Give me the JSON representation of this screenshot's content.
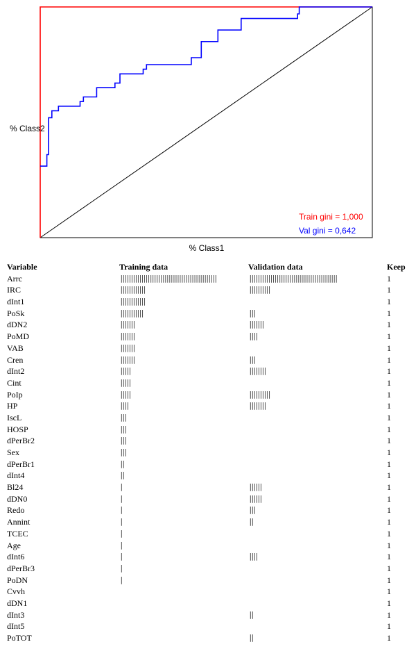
{
  "chart_data": {
    "type": "line",
    "xlabel": "% Class1",
    "ylabel": "% Class2",
    "xlim": [
      0,
      100
    ],
    "ylim": [
      0,
      100
    ],
    "grid": false,
    "legend_position": "bottom-right",
    "series": [
      {
        "name": "Train gini = 1,000",
        "color": "#ff0000",
        "points": [
          [
            0,
            0
          ],
          [
            0,
            100
          ],
          [
            100,
            100
          ]
        ]
      },
      {
        "name": "Val   gini = 0,642",
        "color": "#0000ff",
        "points": [
          [
            0,
            31
          ],
          [
            2,
            31
          ],
          [
            2,
            36
          ],
          [
            2.5,
            36
          ],
          [
            2.5,
            52
          ],
          [
            3.5,
            52
          ],
          [
            3.5,
            55
          ],
          [
            5.5,
            55
          ],
          [
            5.5,
            57
          ],
          [
            12,
            57
          ],
          [
            12,
            59
          ],
          [
            13,
            59
          ],
          [
            13,
            61
          ],
          [
            17,
            61
          ],
          [
            17,
            65
          ],
          [
            22.5,
            65
          ],
          [
            22.5,
            67
          ],
          [
            24,
            67
          ],
          [
            24,
            71
          ],
          [
            31,
            71
          ],
          [
            31,
            73
          ],
          [
            32,
            73
          ],
          [
            32,
            75
          ],
          [
            45.5,
            75
          ],
          [
            45.5,
            78
          ],
          [
            48.5,
            78
          ],
          [
            48.5,
            85
          ],
          [
            53.5,
            85
          ],
          [
            53.5,
            90
          ],
          [
            60.5,
            90
          ],
          [
            60.5,
            95
          ],
          [
            77.5,
            95
          ],
          [
            77.5,
            97
          ],
          [
            78,
            97
          ],
          [
            78,
            100
          ],
          [
            100,
            100
          ]
        ]
      },
      {
        "name": "",
        "color": "#000000",
        "points": [
          [
            0,
            0
          ],
          [
            100,
            100
          ]
        ]
      }
    ]
  },
  "table": {
    "headers": {
      "variable": "Variable",
      "training": "Training data",
      "validation": "Validation data",
      "keep": "Keep"
    },
    "rows": [
      {
        "variable": "Arrc",
        "training": "||||||||||||||||||||||||||||||||||||||||||||||",
        "validation": "||||||||||||||||||||||||||||||||||||||||||",
        "keep": "1"
      },
      {
        "variable": "IRC",
        "training": "||||||||||||",
        "validation": "||||||||||",
        "keep": "1"
      },
      {
        "variable": "dInt1",
        "training": "||||||||||||",
        "validation": "",
        "keep": "1"
      },
      {
        "variable": "PoSk",
        "training": "|||||||||||",
        "validation": "|||",
        "keep": "1"
      },
      {
        "variable": "dDN2",
        "training": "|||||||",
        "validation": "|||||||",
        "keep": "1"
      },
      {
        "variable": "PoMD",
        "training": "|||||||",
        "validation": "||||",
        "keep": "1"
      },
      {
        "variable": "VAB",
        "training": "|||||||",
        "validation": "",
        "keep": "1"
      },
      {
        "variable": "Cren",
        "training": "|||||||",
        "validation": "|||",
        "keep": "1"
      },
      {
        "variable": "dInt2",
        "training": "|||||",
        "validation": "||||||||",
        "keep": "1"
      },
      {
        "variable": "Cint",
        "training": "|||||",
        "validation": "",
        "keep": "1"
      },
      {
        "variable": "PoIp",
        "training": "|||||",
        "validation": "||||||||||",
        "keep": "1"
      },
      {
        "variable": "HP",
        "training": "||||",
        "validation": "||||||||",
        "keep": "1"
      },
      {
        "variable": "IscL",
        "training": "|||",
        "validation": "",
        "keep": "1"
      },
      {
        "variable": "HOSP",
        "training": "|||",
        "validation": "",
        "keep": "1"
      },
      {
        "variable": "dPerBr2",
        "training": "|||",
        "validation": "",
        "keep": "1"
      },
      {
        "variable": "Sex",
        "training": "|||",
        "validation": "",
        "keep": "1"
      },
      {
        "variable": "dPerBr1",
        "training": "||",
        "validation": "",
        "keep": "1"
      },
      {
        "variable": "dInt4",
        "training": "||",
        "validation": "",
        "keep": "1"
      },
      {
        "variable": "Bl24",
        "training": "|",
        "validation": "||||||",
        "keep": "1"
      },
      {
        "variable": "dDN0",
        "training": "|",
        "validation": "||||||",
        "keep": "1"
      },
      {
        "variable": "Redo",
        "training": "|",
        "validation": "|||",
        "keep": "1"
      },
      {
        "variable": "Annint",
        "training": "|",
        "validation": "||",
        "keep": "1"
      },
      {
        "variable": "TCEC",
        "training": "|",
        "validation": "",
        "keep": "1"
      },
      {
        "variable": "Age",
        "training": "|",
        "validation": "",
        "keep": "1"
      },
      {
        "variable": "dInt6",
        "training": "|",
        "validation": "||||",
        "keep": "1"
      },
      {
        "variable": "dPerBr3",
        "training": "|",
        "validation": "",
        "keep": "1"
      },
      {
        "variable": "PoDN",
        "training": "|",
        "validation": "",
        "keep": "1"
      },
      {
        "variable": "Cvvh",
        "training": "",
        "validation": "",
        "keep": "1"
      },
      {
        "variable": "dDN1",
        "training": "",
        "validation": "",
        "keep": "1"
      },
      {
        "variable": "dInt3",
        "training": "",
        "validation": "||",
        "keep": "1"
      },
      {
        "variable": "dInt5",
        "training": "",
        "validation": "",
        "keep": "1"
      },
      {
        "variable": "PoTOT",
        "training": "",
        "validation": "||",
        "keep": "1"
      }
    ]
  }
}
